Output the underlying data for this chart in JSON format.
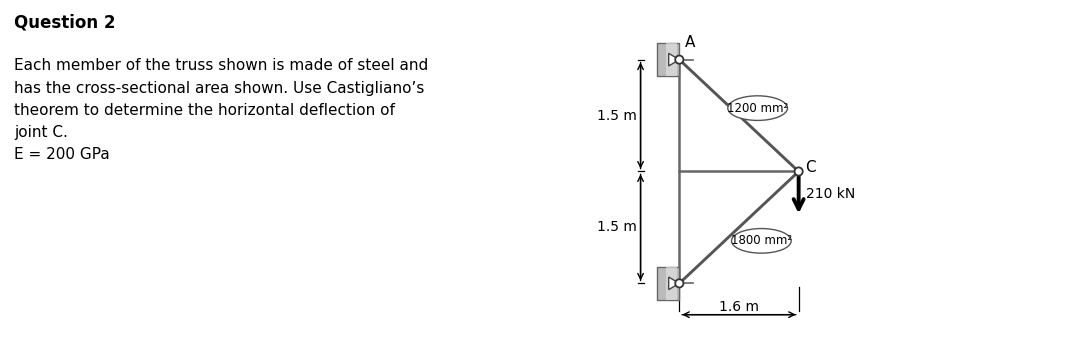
{
  "title": "Question 2",
  "body_text": "Each member of the truss shown is made of steel and\nhas the cross-sectional area shown. Use Castigliano’s\ntheorem to determine the horizontal deflection of\njoint C.\nE = 200 GPa",
  "bg_color": "#ffffff",
  "text_color": "#000000",
  "diagram": {
    "A": [
      0.0,
      3.0
    ],
    "B": [
      0.0,
      0.0
    ],
    "C": [
      1.6,
      1.5
    ],
    "dim_top": "1.5 m",
    "dim_bot": "1.5 m",
    "dim_horiz": "1.6 m",
    "area_AC": "1200 mm²",
    "area_BC": "1800 mm²",
    "force_label": "210 kN",
    "member_color": "#666666",
    "member_linewidth": 1.8,
    "diag_member_color": "#555555",
    "wall_color_face": "#bbbbbb",
    "wall_color_edge": "#666666",
    "label_A": "A",
    "label_C": "C"
  }
}
